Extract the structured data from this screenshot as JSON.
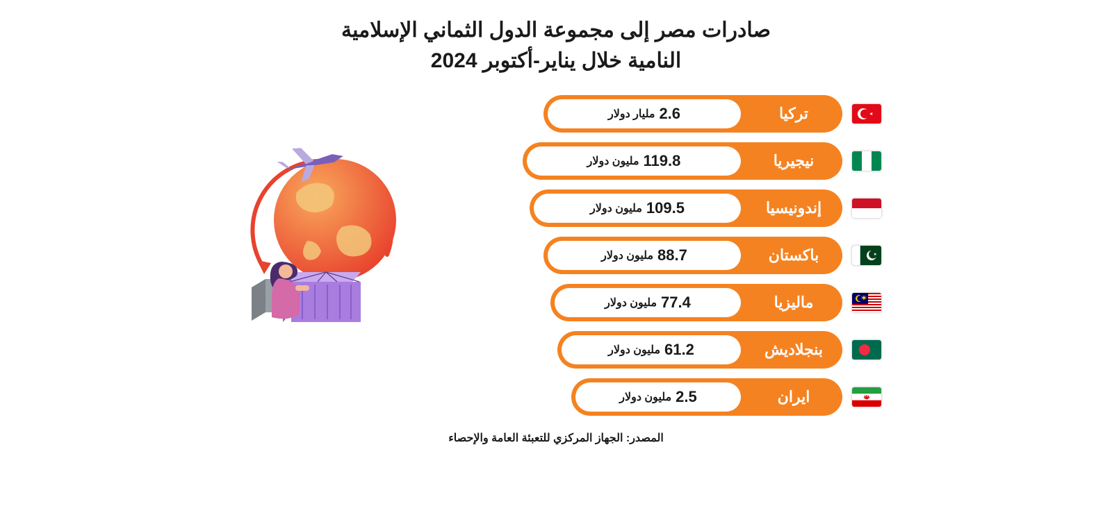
{
  "title_line1": "صادرات مصر إلى مجموعة الدول الثماني الإسلامية",
  "title_line2": "النامية  خلال يناير-أكتوبر 2024",
  "title_fontsize": 30,
  "title_color": "#1a1a1a",
  "background_color": "#ffffff",
  "pill_bg": "#f58220",
  "value_bg": "#ffffff",
  "country_text_color": "#ffffff",
  "value_text_color": "#1a1a1a",
  "country_fontsize": 22,
  "value_num_fontsize": 22,
  "value_unit_fontsize": 16,
  "pill_height": 54,
  "row_gap": 14,
  "country_label_width": 140,
  "rows": [
    {
      "country": "تركيا",
      "value": "2.6",
      "unit": "مليار دولار",
      "pill_width": 430,
      "flag": "turkey"
    },
    {
      "country": "نيجيريا",
      "value": "119.8",
      "unit": "مليون دولار",
      "pill_width": 460,
      "flag": "nigeria"
    },
    {
      "country": "إندونيسيا",
      "value": "109.5",
      "unit": "مليون دولار",
      "pill_width": 450,
      "flag": "indonesia"
    },
    {
      "country": "باكستان",
      "value": "88.7",
      "unit": "مليون دولار",
      "pill_width": 430,
      "flag": "pakistan"
    },
    {
      "country": "ماليزيا",
      "value": "77.4",
      "unit": "مليون دولار",
      "pill_width": 420,
      "flag": "malaysia"
    },
    {
      "country": "بنجلاديش",
      "value": "61.2",
      "unit": "مليون دولار",
      "pill_width": 410,
      "flag": "bangladesh"
    },
    {
      "country": "ايران",
      "value": "2.5",
      "unit": "مليون دولار",
      "pill_width": 390,
      "flag": "iran"
    }
  ],
  "source_label": "المصدر: الجهاز المركزي للتعبئة العامة والإحصاء",
  "source_fontsize": 16,
  "illustration": {
    "globe_gradient_from": "#f9a85c",
    "globe_gradient_to": "#e8432e",
    "continent_color": "#f2c77a",
    "plane_body": "#7a5fb8",
    "plane_wing": "#b9a9e0",
    "person_hair": "#4a2c6a",
    "person_body": "#d46aa8",
    "box_front": "#a97de0",
    "box_side": "#8a5fc8",
    "box_top": "#c9a9f0",
    "box2_front": "#9aa0a8",
    "box2_side": "#7c8188",
    "arrow_color": "#e8432e"
  }
}
